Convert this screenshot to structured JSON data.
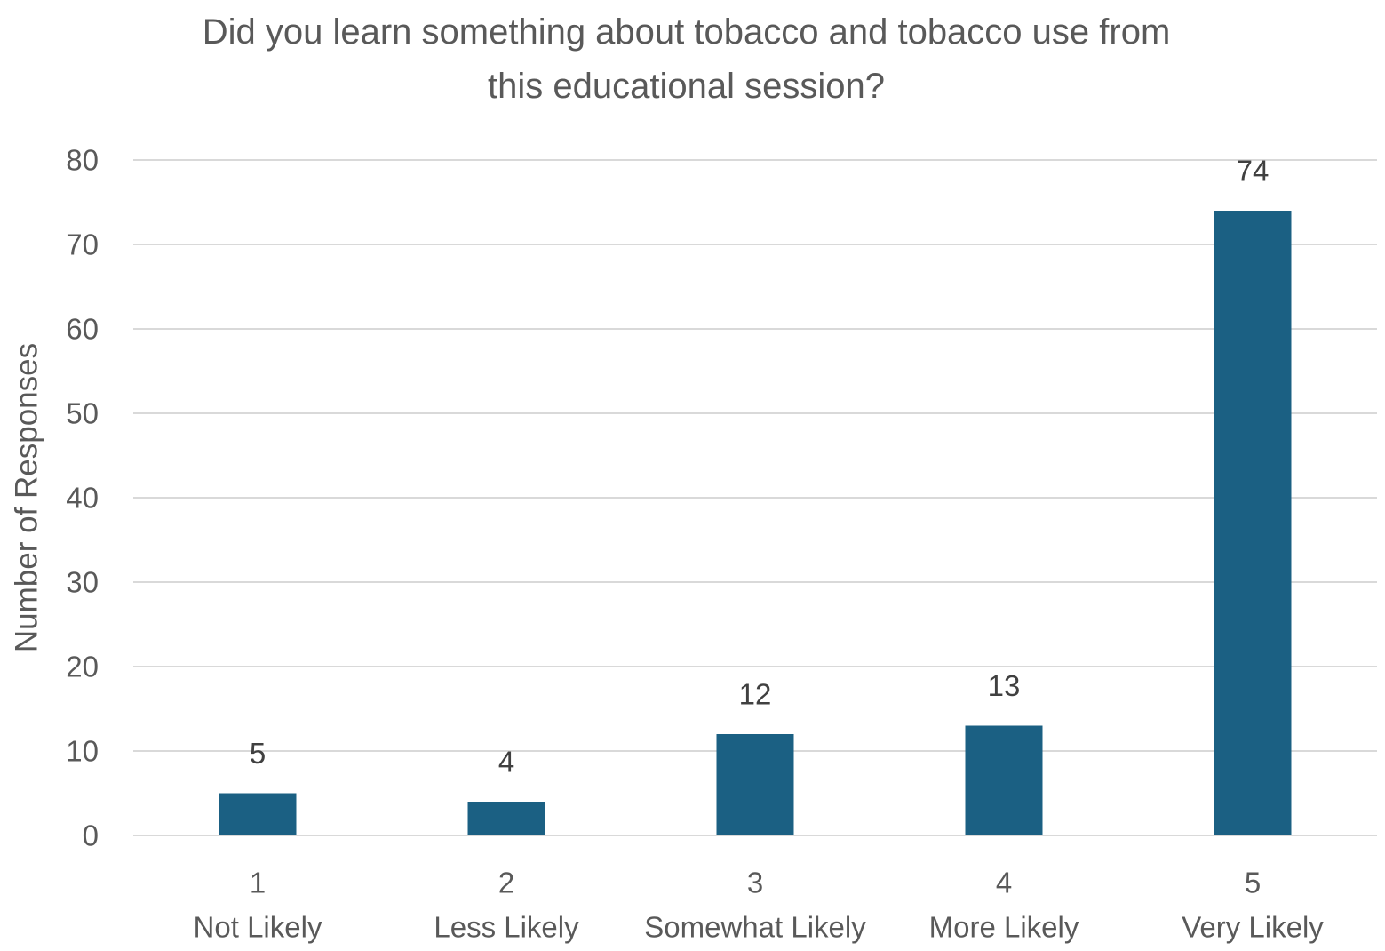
{
  "chart_data": {
    "type": "bar",
    "title_lines": [
      "Did you learn something about tobacco and tobacco use from",
      "this educational session?"
    ],
    "xlabel": "",
    "ylabel": "Number of Responses",
    "ylim": [
      0,
      80
    ],
    "y_ticks": [
      0,
      10,
      20,
      30,
      40,
      50,
      60,
      70,
      80
    ],
    "grid": true,
    "legend": "none",
    "categories": [
      {
        "number": "1",
        "label": "Not Likely"
      },
      {
        "number": "2",
        "label": "Less Likely"
      },
      {
        "number": "3",
        "label": "Somewhat Likely"
      },
      {
        "number": "4",
        "label": "More Likely"
      },
      {
        "number": "5",
        "label": "Very Likely"
      }
    ],
    "values": [
      5,
      4,
      12,
      13,
      74
    ],
    "data_labels": [
      "5",
      "4",
      "12",
      "13",
      "74"
    ],
    "colors": {
      "bar": "#1b6083",
      "grid": "#d9d9d9",
      "text": "#595959",
      "data_label": "#404040"
    }
  }
}
